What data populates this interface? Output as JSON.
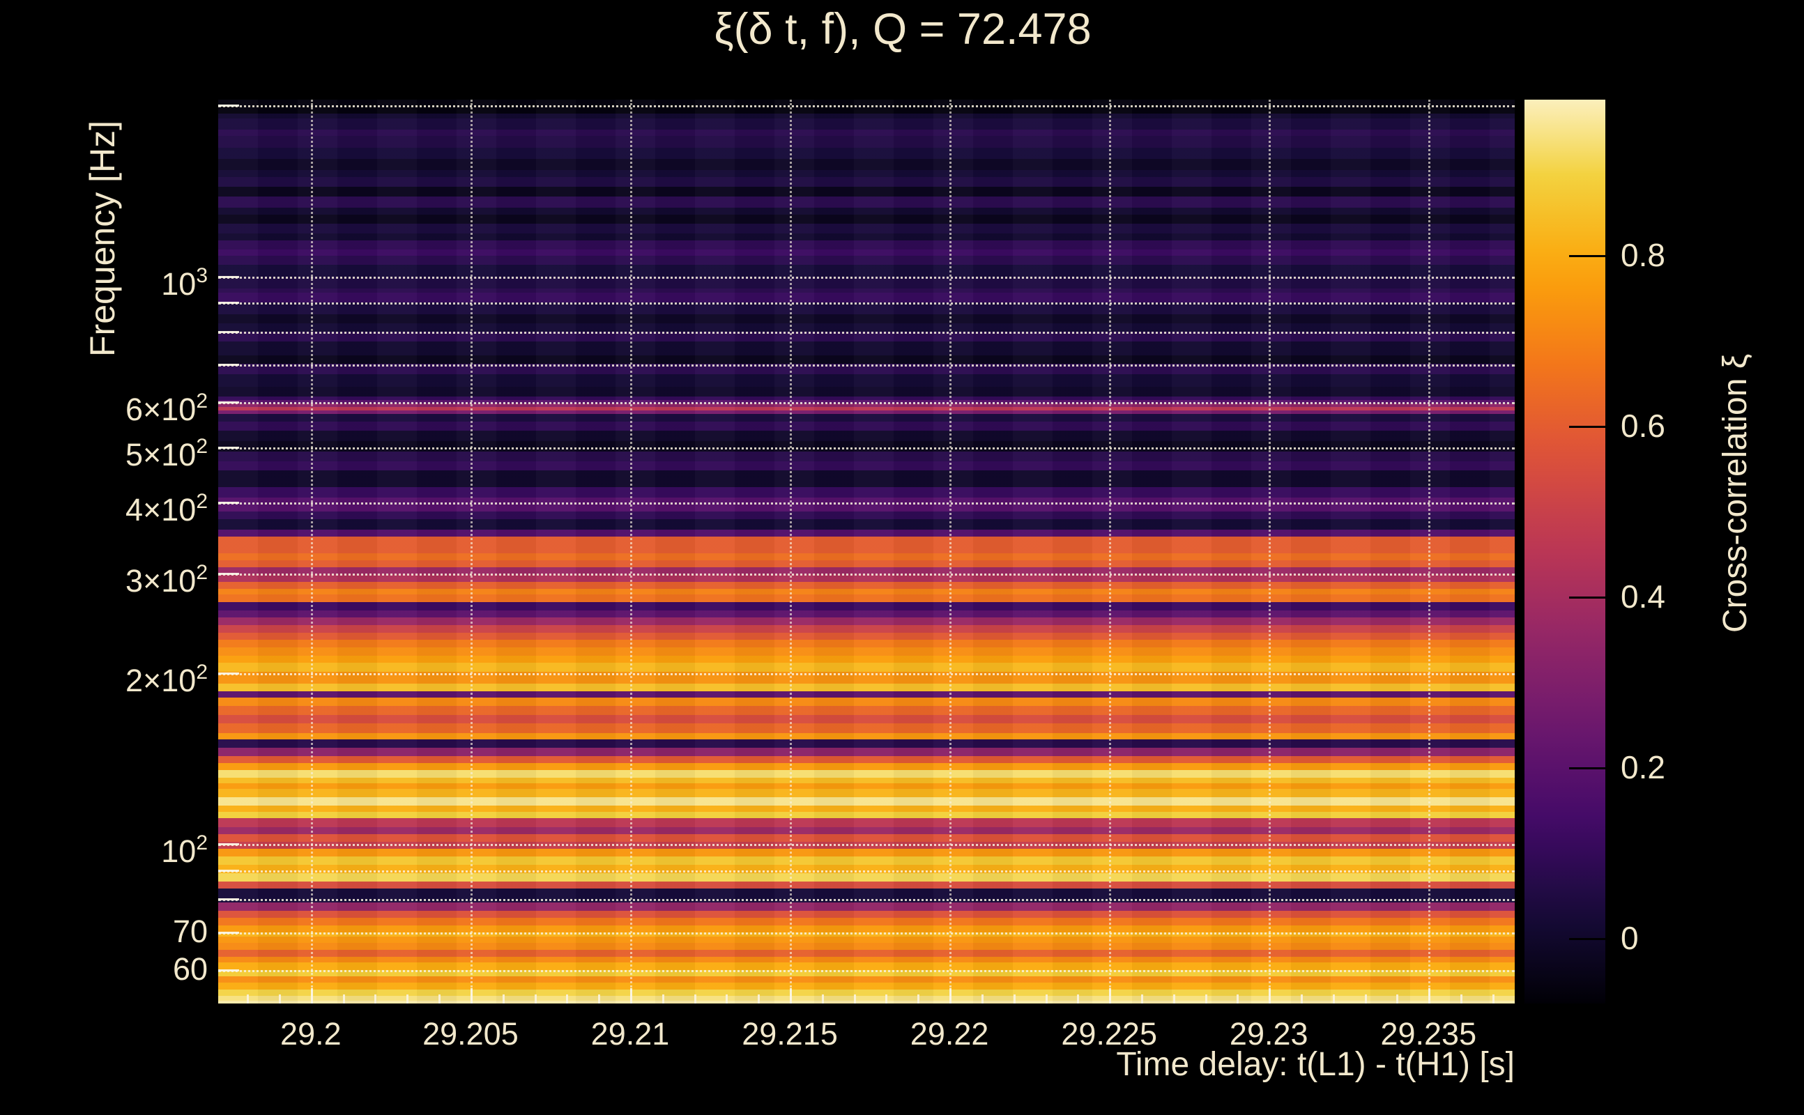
{
  "page": {
    "background": "#000000",
    "text_color": "#f2e8cc"
  },
  "chart_data": {
    "type": "heatmap",
    "title": "ξ(δ t, f), Q = 72.478",
    "xlabel": "Time delay: t(L1) - t(H1) [s]",
    "ylabel": "Frequency [Hz]",
    "colorbar_label": "Cross-correlation ξ",
    "grid": "dotted",
    "x_axis": {
      "min": 29.1971,
      "max": 29.2377,
      "minor_tick_step": 0.001,
      "major_ticks": [
        {
          "t": 29.2,
          "label": "29.2"
        },
        {
          "t": 29.205,
          "label": "29.205"
        },
        {
          "t": 29.21,
          "label": "29.21"
        },
        {
          "t": 29.215,
          "label": "29.215"
        },
        {
          "t": 29.22,
          "label": "29.22"
        },
        {
          "t": 29.225,
          "label": "29.225"
        },
        {
          "t": 29.23,
          "label": "29.23"
        },
        {
          "t": 29.235,
          "label": "29.235"
        }
      ]
    },
    "y_axis": {
      "scale": "log",
      "min": 52.4,
      "max": 2048,
      "labeled_ticks": [
        {
          "f": 1000,
          "base": "10",
          "sup": "3"
        },
        {
          "f": 600,
          "base": "6×10",
          "sup": "2"
        },
        {
          "f": 500,
          "base": "5×10",
          "sup": "2"
        },
        {
          "f": 400,
          "base": "4×10",
          "sup": "2"
        },
        {
          "f": 300,
          "base": "3×10",
          "sup": "2"
        },
        {
          "f": 200,
          "base": "2×10",
          "sup": "2"
        },
        {
          "f": 100,
          "base": "10",
          "sup": "2"
        },
        {
          "f": 70,
          "base": "70",
          "sup": ""
        },
        {
          "f": 60,
          "base": "60",
          "sup": ""
        }
      ],
      "gridline_freqs": [
        2000,
        1000,
        900,
        800,
        700,
        600,
        500,
        400,
        300,
        200,
        100,
        90,
        80,
        70,
        60
      ]
    },
    "colorbar": {
      "value_top": 0.983,
      "value_bottom": -0.076,
      "ticks": [
        {
          "v": 0.8,
          "label": "0.8"
        },
        {
          "v": 0.6,
          "label": "0.6"
        },
        {
          "v": 0.4,
          "label": "0.4"
        },
        {
          "v": 0.2,
          "label": "0.2"
        },
        {
          "v": 0.0,
          "label": "0"
        }
      ]
    },
    "colormap": {
      "name": "inferno-like",
      "domain": [
        -0.08,
        1.0
      ],
      "stops": [
        [
          0.0,
          "#000004"
        ],
        [
          0.1,
          "#160b39"
        ],
        [
          0.2,
          "#420a68"
        ],
        [
          0.3,
          "#6a176e"
        ],
        [
          0.4,
          "#932667"
        ],
        [
          0.5,
          "#bc3754"
        ],
        [
          0.6,
          "#dd513a"
        ],
        [
          0.7,
          "#f37819"
        ],
        [
          0.8,
          "#fca50a"
        ],
        [
          0.9,
          "#f3d13c"
        ],
        [
          1.0,
          "#fdf5d4"
        ]
      ]
    },
    "bands_comment": "Each band is [freq_high_Hz, freq_low_Hz, xi_value]; xi constant across time delay",
    "bands": [
      [
        2048,
        1935,
        -0.06
      ],
      [
        1935,
        1895,
        0.01
      ],
      [
        1895,
        1816,
        0.04
      ],
      [
        1816,
        1766,
        0.08
      ],
      [
        1766,
        1683,
        0.06
      ],
      [
        1683,
        1611,
        0.03
      ],
      [
        1611,
        1541,
        -0.01
      ],
      [
        1541,
        1498,
        0.02
      ],
      [
        1498,
        1437,
        0.05
      ],
      [
        1437,
        1381,
        -0.03
      ],
      [
        1381,
        1323,
        0.08
      ],
      [
        1323,
        1286,
        0.01
      ],
      [
        1286,
        1239,
        -0.03
      ],
      [
        1239,
        1190,
        0.04
      ],
      [
        1190,
        1157,
        0.01
      ],
      [
        1157,
        1115,
        0.09
      ],
      [
        1115,
        1086,
        0.12
      ],
      [
        1086,
        1049,
        0.08
      ],
      [
        1049,
        1000,
        0.03
      ],
      [
        1000,
        953,
        0.05
      ],
      [
        953,
        937,
        0.08
      ],
      [
        937,
        900,
        0.11
      ],
      [
        900,
        857,
        0.04
      ],
      [
        857,
        826,
        -0.01
      ],
      [
        826,
        800,
        0.02
      ],
      [
        800,
        767,
        0.08
      ],
      [
        767,
        725,
        0.01
      ],
      [
        725,
        701,
        -0.03
      ],
      [
        701,
        672,
        0.08
      ],
      [
        672,
        640,
        0.02
      ],
      [
        640,
        615,
        0.0
      ],
      [
        615,
        606,
        0.1
      ],
      [
        606,
        597,
        0.2
      ],
      [
        597,
        589,
        0.33
      ],
      [
        589,
        580,
        0.46
      ],
      [
        580,
        573,
        0.28
      ],
      [
        573,
        555,
        0.04
      ],
      [
        555,
        535,
        0.09
      ],
      [
        535,
        512,
        0.0
      ],
      [
        512,
        491,
        -0.03
      ],
      [
        491,
        473,
        0.07
      ],
      [
        473,
        455,
        0.1
      ],
      [
        455,
        426,
        0.0
      ],
      [
        426,
        408,
        0.11
      ],
      [
        408,
        385,
        0.19
      ],
      [
        385,
        374,
        0.09
      ],
      [
        374,
        358,
        0.02
      ],
      [
        358,
        348,
        0.18
      ],
      [
        348,
        325,
        0.6
      ],
      [
        325,
        316,
        0.65
      ],
      [
        316,
        307,
        0.6
      ],
      [
        307,
        299,
        0.37
      ],
      [
        299,
        290,
        0.42
      ],
      [
        290,
        282,
        0.61
      ],
      [
        282,
        275,
        0.7
      ],
      [
        275,
        267,
        0.66
      ],
      [
        267,
        258,
        0.12
      ],
      [
        258,
        251,
        0.21
      ],
      [
        251,
        243,
        0.37
      ],
      [
        243,
        236,
        0.51
      ],
      [
        236,
        229,
        0.59
      ],
      [
        229,
        222,
        0.68
      ],
      [
        222,
        215,
        0.73
      ],
      [
        215,
        209,
        0.77
      ],
      [
        209,
        201,
        0.83
      ],
      [
        201,
        192,
        0.74
      ],
      [
        192,
        186,
        0.85
      ],
      [
        186,
        181,
        0.21
      ],
      [
        181,
        175,
        0.72
      ],
      [
        175,
        169,
        0.63
      ],
      [
        169,
        163,
        0.55
      ],
      [
        163,
        157,
        0.63
      ],
      [
        157,
        153,
        0.75
      ],
      [
        153,
        148,
        0.07
      ],
      [
        148,
        143,
        0.33
      ],
      [
        143,
        139,
        0.59
      ],
      [
        139,
        135,
        0.76
      ],
      [
        135,
        131,
        0.93
      ],
      [
        131,
        128,
        0.84
      ],
      [
        128,
        125,
        0.76
      ],
      [
        125,
        121,
        0.82
      ],
      [
        121,
        117,
        0.95
      ],
      [
        117,
        114,
        0.81
      ],
      [
        114,
        111,
        0.89
      ],
      [
        111,
        107,
        0.46
      ],
      [
        107,
        104,
        0.37
      ],
      [
        104,
        101,
        0.57
      ],
      [
        101,
        98,
        0.49
      ],
      [
        98,
        95,
        0.75
      ],
      [
        95,
        92,
        0.87
      ],
      [
        92,
        89,
        0.81
      ],
      [
        89,
        86,
        0.91
      ],
      [
        86,
        83.5,
        0.55
      ],
      [
        83.5,
        79,
        0.03
      ],
      [
        79,
        76.3,
        0.35
      ],
      [
        76.3,
        74.2,
        0.57
      ],
      [
        74.2,
        72,
        0.67
      ],
      [
        72,
        70,
        0.76
      ],
      [
        70,
        68.7,
        0.82
      ],
      [
        68.7,
        67.1,
        0.75
      ],
      [
        67.1,
        65.2,
        0.72
      ],
      [
        65.2,
        63.4,
        0.61
      ],
      [
        63.4,
        61.9,
        0.72
      ],
      [
        61.9,
        60,
        0.8
      ],
      [
        60,
        58.5,
        0.88
      ],
      [
        58.5,
        57,
        0.73
      ],
      [
        57,
        55.5,
        0.8
      ],
      [
        55.5,
        54,
        0.9
      ],
      [
        54,
        53,
        0.94
      ],
      [
        53,
        52.4,
        0.97
      ]
    ]
  }
}
